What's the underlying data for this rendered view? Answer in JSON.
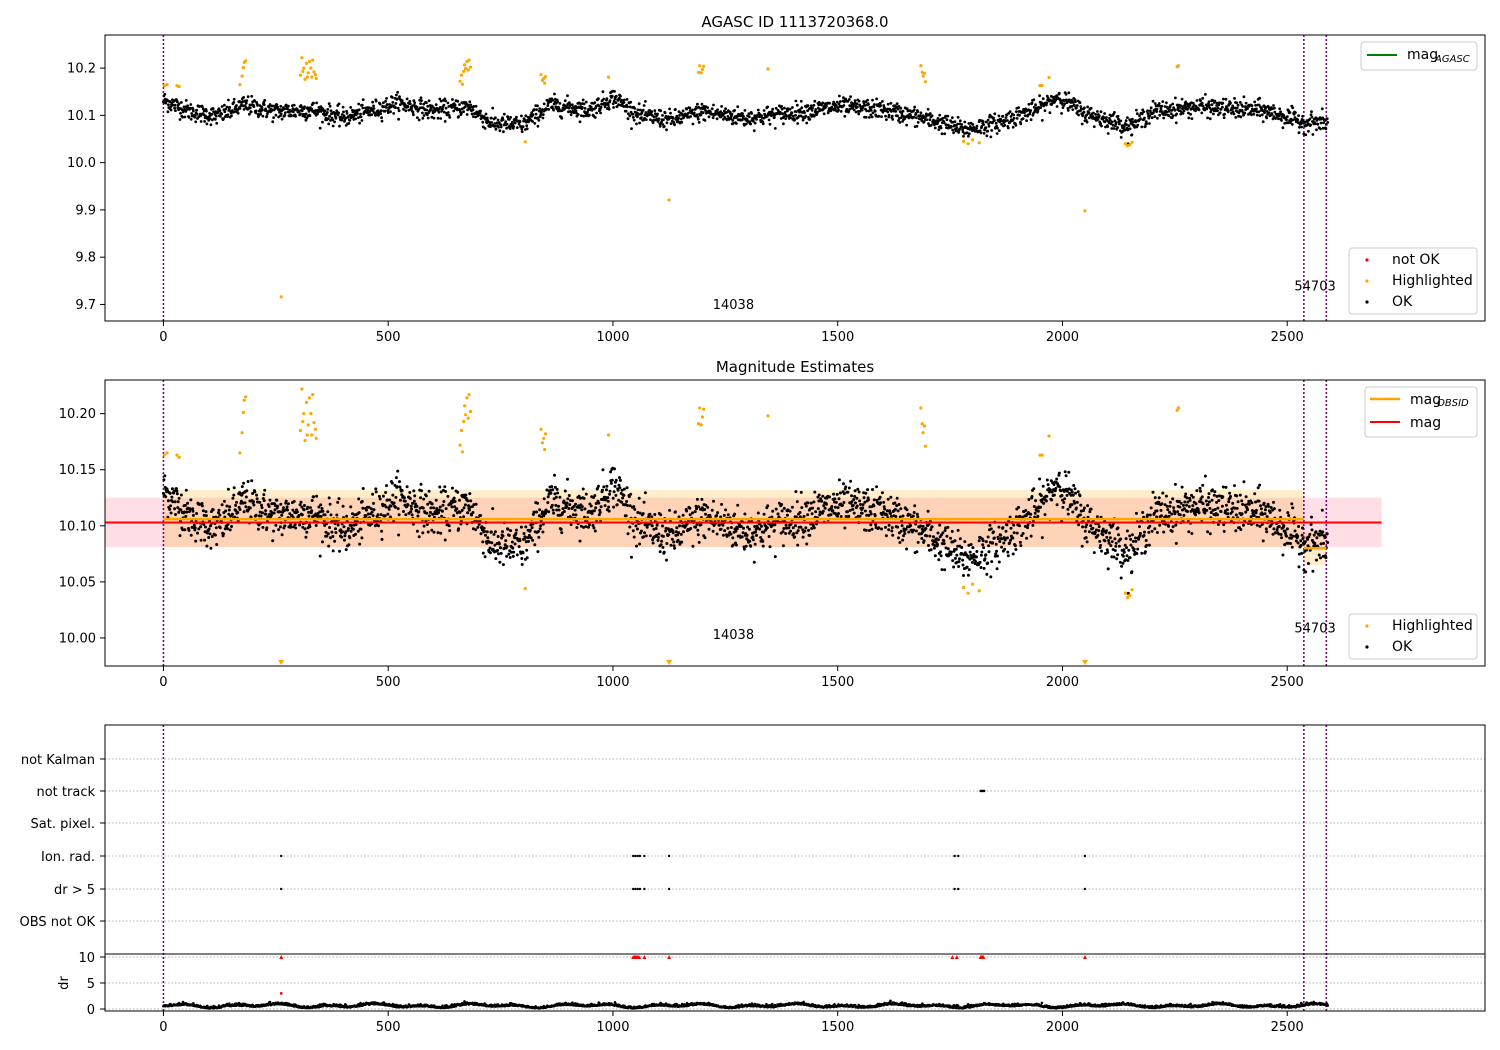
{
  "chart_data": [
    {
      "type": "scatter",
      "title": "AGASC ID 1113720368.0",
      "xlim": [
        -130,
        2940
      ],
      "ylim": [
        9.665,
        10.27
      ],
      "xticks": [
        0,
        500,
        1000,
        1500,
        2000,
        2500
      ],
      "yticks": [
        9.7,
        9.8,
        9.9,
        10.0,
        10.1,
        10.2
      ],
      "ytick_labels": [
        "9.7",
        "9.8",
        "9.9",
        "10.0",
        "10.1",
        "10.2"
      ],
      "xtick_labels": [
        "0",
        "500",
        "1000",
        "1500",
        "2000",
        "2500"
      ],
      "vlines": [
        0,
        2537,
        2587
      ],
      "vline_color": "#800080",
      "annotations": [
        {
          "text": "14038",
          "x": 1268,
          "y": 9.69
        },
        {
          "text": "54703",
          "x": 2562,
          "y": 9.73
        }
      ],
      "mag_line": {
        "label": "mag",
        "subscript": "AGASC",
        "color": "#008000"
      },
      "legend_position": "upper right + lower right",
      "legend": [
        "not OK",
        "Highlighted",
        "OK"
      ],
      "legend_colors": [
        "#ff0000",
        "#ffa500",
        "#000000"
      ],
      "series": [
        {
          "name": "OK",
          "color": "#000000",
          "n": 2600,
          "baseline_segments": [
            [
              0,
              10.132
            ],
            [
              60,
              10.108
            ],
            [
              120,
              10.098
            ],
            [
              180,
              10.122
            ],
            [
              250,
              10.108
            ],
            [
              330,
              10.112
            ],
            [
              400,
              10.095
            ],
            [
              470,
              10.112
            ],
            [
              520,
              10.126
            ],
            [
              600,
              10.11
            ],
            [
              680,
              10.118
            ],
            [
              730,
              10.083
            ],
            [
              800,
              10.08
            ],
            [
              860,
              10.122
            ],
            [
              950,
              10.112
            ],
            [
              1000,
              10.138
            ],
            [
              1060,
              10.1
            ],
            [
              1130,
              10.09
            ],
            [
              1200,
              10.108
            ],
            [
              1300,
              10.094
            ],
            [
              1400,
              10.106
            ],
            [
              1500,
              10.118
            ],
            [
              1600,
              10.112
            ],
            [
              1700,
              10.092
            ],
            [
              1780,
              10.07
            ],
            [
              1850,
              10.082
            ],
            [
              1950,
              10.116
            ],
            [
              1990,
              10.14
            ],
            [
              2050,
              10.104
            ],
            [
              2150,
              10.076
            ],
            [
              2200,
              10.108
            ],
            [
              2300,
              10.118
            ],
            [
              2450,
              10.11
            ],
            [
              2537,
              10.085
            ],
            [
              2590,
              10.085
            ]
          ],
          "noise": 0.018,
          "x_range": [
            0,
            2590
          ]
        },
        {
          "name": "Highlighted",
          "color": "#ffa500",
          "points": [
            [
              2,
              10.163
            ],
            [
              8,
              10.165
            ],
            [
              30,
              10.163
            ],
            [
              35,
              10.161
            ],
            [
              170,
              10.165
            ],
            [
              175,
              10.183
            ],
            [
              178,
              10.201
            ],
            [
              180,
              10.212
            ],
            [
              183,
              10.215
            ],
            [
              262,
              9.716
            ],
            [
              305,
              10.185
            ],
            [
              308,
              10.222
            ],
            [
              310,
              10.193
            ],
            [
              312,
              10.2
            ],
            [
              315,
              10.176
            ],
            [
              318,
              10.21
            ],
            [
              320,
              10.181
            ],
            [
              322,
              10.19
            ],
            [
              325,
              10.214
            ],
            [
              328,
              10.2
            ],
            [
              330,
              10.181
            ],
            [
              332,
              10.217
            ],
            [
              335,
              10.192
            ],
            [
              338,
              10.186
            ],
            [
              340,
              10.178
            ],
            [
              660,
              10.172
            ],
            [
              663,
              10.185
            ],
            [
              665,
              10.166
            ],
            [
              668,
              10.193
            ],
            [
              670,
              10.207
            ],
            [
              672,
              10.199
            ],
            [
              675,
              10.214
            ],
            [
              678,
              10.196
            ],
            [
              680,
              10.217
            ],
            [
              683,
              10.202
            ],
            [
              805,
              10.044
            ],
            [
              840,
              10.186
            ],
            [
              843,
              10.174
            ],
            [
              846,
              10.178
            ],
            [
              848,
              10.168
            ],
            [
              850,
              10.182
            ],
            [
              990,
              10.181
            ],
            [
              1125,
              9.921
            ],
            [
              1190,
              10.191
            ],
            [
              1193,
              10.205
            ],
            [
              1196,
              10.19
            ],
            [
              1199,
              10.197
            ],
            [
              1202,
              10.204
            ],
            [
              1345,
              10.198
            ],
            [
              1685,
              10.205
            ],
            [
              1688,
              10.191
            ],
            [
              1690,
              10.183
            ],
            [
              1693,
              10.189
            ],
            [
              1695,
              10.171
            ],
            [
              1780,
              10.045
            ],
            [
              1790,
              10.04
            ],
            [
              1800,
              10.048
            ],
            [
              1815,
              10.042
            ],
            [
              1950,
              10.163
            ],
            [
              1955,
              10.163
            ],
            [
              1970,
              10.18
            ],
            [
              2050,
              9.898
            ],
            [
              2140,
              10.04
            ],
            [
              2145,
              10.036
            ],
            [
              2150,
              10.038
            ],
            [
              2155,
              10.043
            ],
            [
              2255,
              10.203
            ],
            [
              2258,
              10.205
            ]
          ]
        }
      ]
    },
    {
      "type": "scatter",
      "title": "Magnitude Estimates",
      "xlim": [
        -130,
        2940
      ],
      "ylim": [
        9.975,
        10.23
      ],
      "xticks": [
        0,
        500,
        1000,
        1500,
        2000,
        2500
      ],
      "xtick_labels": [
        "0",
        "500",
        "1000",
        "1500",
        "2000",
        "2500"
      ],
      "yticks": [
        10.0,
        10.05,
        10.1,
        10.15,
        10.2
      ],
      "ytick_labels": [
        "10.00",
        "10.05",
        "10.10",
        "10.15",
        "10.20"
      ],
      "vlines": [
        0,
        2537,
        2587
      ],
      "vline_color": "#800080",
      "annotations": [
        {
          "text": "14038",
          "x": 1268,
          "y": 9.999
        },
        {
          "text": "54703",
          "x": 2562,
          "y": 10.005
        }
      ],
      "mag": {
        "label": "mag",
        "value": 10.103,
        "band": [
          10.081,
          10.125
        ],
        "x_range": [
          -130,
          2710
        ],
        "color": "#ff0000",
        "band_color": "#ffc0cb"
      },
      "mag_obsid": {
        "label": "mag",
        "subscript": "OBSID",
        "color": "#ffa500",
        "segments": [
          {
            "x": [
              0,
              2537
            ],
            "value": 10.106,
            "band": [
              10.081,
              10.132
            ]
          },
          {
            "x": [
              2537,
              2587
            ],
            "value": 10.08,
            "band": [
              10.065,
              10.095
            ]
          }
        ]
      },
      "offscale_markers": [
        262,
        1125,
        2050
      ],
      "legend": [
        "Highlighted",
        "OK"
      ],
      "legend_colors": [
        "#ffa500",
        "#000000"
      ],
      "legend_top": [
        "mag",
        "mag"
      ],
      "legend_position": "upper right + lower right"
    },
    {
      "type": "scatter",
      "title": "",
      "xlim": [
        -130,
        2940
      ],
      "xticks": [
        0,
        500,
        1000,
        1500,
        2000,
        2500
      ],
      "xtick_labels": [
        "0",
        "500",
        "1000",
        "1500",
        "2000",
        "2500"
      ],
      "vlines": [
        0,
        2537,
        2587
      ],
      "flag_rows": [
        "not Kalman",
        "not track",
        "Sat. pixel.",
        "Ion. rad.",
        "dr > 5",
        "OBS not OK"
      ],
      "flag_points": {
        "not track": [
          1818,
          1820,
          1822,
          1824,
          1826
        ],
        "Ion. rad.": [
          262,
          1045,
          1050,
          1055,
          1060,
          1070,
          1125,
          1760,
          1768,
          2050
        ],
        "dr > 5": [
          262,
          1045,
          1050,
          1055,
          1060,
          1070,
          1125,
          1760,
          1768,
          2050
        ]
      },
      "dr_axis": {
        "ylabel": "dr",
        "yticks": [
          0,
          5,
          10
        ],
        "ytick_labels": [
          "0",
          "5",
          "10"
        ],
        "ylim": [
          -0.5,
          10.5
        ]
      },
      "dr_clipped_red": [
        262,
        1045,
        1048,
        1050,
        1053,
        1055,
        1058,
        1070,
        1125,
        1755,
        1765,
        1818,
        1820,
        1822,
        1824,
        2050
      ],
      "dr_red_points": [
        [
          262,
          3.0
        ]
      ]
    }
  ]
}
